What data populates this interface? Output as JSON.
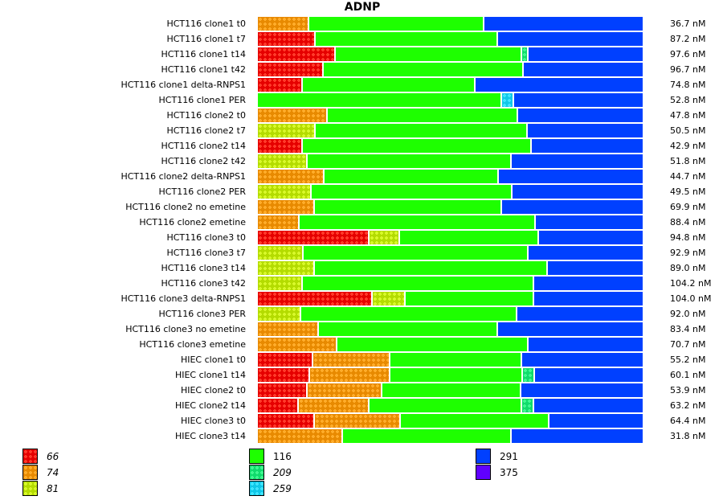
{
  "chart_data": {
    "type": "bar",
    "orientation": "horizontal-stacked-100",
    "title": "ADNP",
    "xlabel": "",
    "ylabel": "",
    "value_unit": "fraction of bar (%)",
    "legend_position": "bottom",
    "categories": [
      "HCT116 clone1 t0",
      "HCT116 clone1 t7",
      "HCT116 clone1 t14",
      "HCT116 clone1 t42",
      "HCT116 clone1 delta-RNPS1",
      "HCT116 clone1 PER",
      "HCT116 clone2 t0",
      "HCT116 clone2 t7",
      "HCT116 clone2 t14",
      "HCT116 clone2 t42",
      "HCT116 clone2 delta-RNPS1",
      "HCT116 clone2 PER",
      "HCT116 clone2 no emetine",
      "HCT116 clone2 emetine",
      "HCT116 clone3 t0",
      "HCT116 clone3 t7",
      "HCT116 clone3 t14",
      "HCT116 clone3 t42",
      "HCT116 clone3 delta-RNPS1",
      "HCT116 clone3 PER",
      "HCT116 clone3 no emetine",
      "HCT116 clone3 emetine",
      "HIEC clone1 t0",
      "HIEC clone1 t14",
      "HIEC clone2 t0",
      "HIEC clone2 t14",
      "HIEC clone3 t0",
      "HIEC clone3 t14"
    ],
    "totals": [
      "36.7 nM",
      "87.2 nM",
      "97.6 nM",
      "96.7 nM",
      "74.8 nM",
      "52.8 nM",
      "47.8 nM",
      "50.5 nM",
      "42.9 nM",
      "51.8 nM",
      "44.7 nM",
      "49.5 nM",
      "69.9 nM",
      "88.4 nM",
      "94.8 nM",
      "92.9 nM",
      "89.0 nM",
      "104.2 nM",
      "104.0 nM",
      "92.0 nM",
      "83.4 nM",
      "70.7 nM",
      "55.2 nM",
      "60.1 nM",
      "53.9 nM",
      "63.2 nM",
      "64.4 nM",
      "31.8 nM"
    ],
    "series": [
      {
        "name": "66",
        "color": "#e60000",
        "light": "#ff3a2a",
        "patterned": true,
        "italic": true,
        "values": [
          0,
          15.0,
          20.2,
          17.1,
          11.7,
          0,
          0,
          0,
          11.7,
          0,
          0,
          0,
          0,
          0,
          28.9,
          0,
          0,
          0,
          29.7,
          0,
          0,
          0,
          14.3,
          13.5,
          12.9,
          10.6,
          14.8,
          0
        ]
      },
      {
        "name": "74",
        "color": "#e88a00",
        "light": "#ffac2a",
        "patterned": true,
        "italic": true,
        "values": [
          13.3,
          0,
          0,
          0,
          0,
          0,
          18.1,
          0,
          0,
          0,
          17.3,
          0,
          14.8,
          10.8,
          0,
          0,
          0,
          0,
          0,
          0,
          15.8,
          20.6,
          20.0,
          20.8,
          19.4,
          18.3,
          22.3,
          22.1
        ]
      },
      {
        "name": "81",
        "color": "#b4dc00",
        "light": "#d8f82a",
        "patterned": true,
        "italic": true,
        "values": [
          0,
          0,
          0,
          0,
          0,
          0,
          0,
          15.0,
          0,
          12.9,
          0,
          14.0,
          0,
          0,
          7.9,
          11.9,
          14.8,
          11.7,
          8.5,
          11.3,
          0,
          0,
          0,
          0,
          0,
          0,
          0,
          0
        ]
      },
      {
        "name": "116",
        "color": "#1eff00",
        "light": "#1eff00",
        "patterned": false,
        "italic": false,
        "values": [
          45.3,
          47.2,
          48.2,
          51.8,
          44.7,
          63.3,
          49.2,
          54.8,
          59.2,
          52.7,
          45.0,
          52.0,
          48.3,
          61.1,
          36.0,
          58.1,
          60.2,
          59.8,
          33.3,
          55.8,
          46.3,
          49.4,
          34.1,
          34.4,
          35.8,
          39.6,
          38.3,
          43.5
        ]
      },
      {
        "name": "209",
        "color": "#10dc6c",
        "light": "#40f890",
        "patterned": true,
        "italic": true,
        "values": [
          0,
          0,
          1.7,
          0,
          0,
          0,
          0,
          0,
          0,
          0,
          0,
          0,
          0,
          0,
          0,
          0,
          0,
          0,
          0,
          0,
          0,
          0,
          0,
          3.1,
          0,
          3.1,
          0,
          0
        ]
      },
      {
        "name": "259",
        "color": "#10c8e8",
        "light": "#40e4ff",
        "patterned": true,
        "italic": true,
        "values": [
          0,
          0,
          0,
          0,
          0,
          3.1,
          0,
          0,
          0,
          0,
          0,
          0,
          0,
          0,
          0,
          0,
          0,
          0,
          0,
          0,
          0,
          0,
          0,
          0,
          0,
          0,
          0,
          0
        ]
      },
      {
        "name": "291",
        "color": "#0040ff",
        "light": "#0040ff",
        "patterned": false,
        "italic": false,
        "values": [
          41.4,
          37.8,
          29.9,
          31.1,
          43.6,
          33.6,
          32.7,
          30.2,
          29.1,
          34.4,
          37.7,
          34.0,
          36.9,
          28.1,
          27.2,
          30.0,
          25.0,
          28.5,
          28.5,
          32.9,
          37.9,
          30.0,
          31.6,
          28.2,
          31.9,
          28.4,
          24.6,
          34.4
        ]
      },
      {
        "name": "375",
        "color": "#6000ff",
        "light": "#6000ff",
        "patterned": false,
        "italic": false,
        "values": [
          0,
          0,
          0,
          0,
          0,
          0,
          0,
          0,
          0,
          0,
          0,
          0,
          0,
          0,
          0,
          0,
          0,
          0,
          0,
          0,
          0,
          0,
          0,
          0,
          0,
          0,
          0,
          0
        ]
      }
    ]
  }
}
